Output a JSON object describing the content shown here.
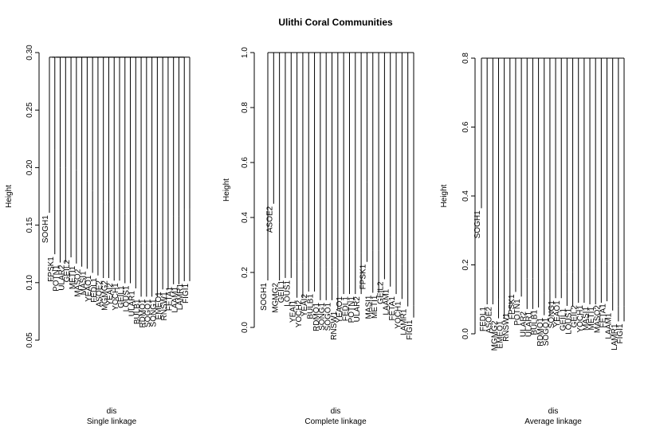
{
  "title": "Ulithi Coral Communities",
  "chart_data": [
    {
      "type": "dendrogram",
      "ylabel": "Height",
      "xlabel": "dis",
      "subtitle": "Single linkage",
      "ylim": [
        0.05,
        0.3
      ],
      "yticks": [
        "0.05",
        "0.10",
        "0.15",
        "0.20",
        "0.25",
        "0.30"
      ],
      "root_height": 0.296,
      "leaves": [
        {
          "label": "SOGH1",
          "height": 0.296
        },
        {
          "label": "FPSK1",
          "height": 0.216
        },
        {
          "label": "POTN1",
          "height": 0.2
        },
        {
          "label": "ULAR2",
          "height": 0.2
        },
        {
          "label": "GEIL2",
          "height": 0.21
        },
        {
          "label": "METI1",
          "height": 0.198
        },
        {
          "label": "MASO2",
          "height": 0.192
        },
        {
          "label": "MASI1",
          "height": 0.188
        },
        {
          "label": "YEAO1",
          "height": 0.18
        },
        {
          "label": "FEDL1",
          "height": 0.175
        },
        {
          "label": "ASOE2",
          "height": 0.17
        },
        {
          "label": "MGMG2",
          "height": 0.17
        },
        {
          "label": "YEAI2",
          "height": 0.165
        },
        {
          "label": "YOCH1",
          "height": 0.165
        },
        {
          "label": "GEIL1",
          "height": 0.16
        },
        {
          "label": "LOUS1",
          "height": 0.16
        },
        {
          "label": "ULAR1",
          "height": 0.15
        },
        {
          "label": "BULB1",
          "height": 0.134
        },
        {
          "label": "RDMO1",
          "height": 0.134
        },
        {
          "label": "SOGO1",
          "height": 0.134
        },
        {
          "label": "SONG1",
          "height": 0.134
        },
        {
          "label": "EMEO1",
          "height": 0.148
        },
        {
          "label": "RNSW1",
          "height": 0.148
        },
        {
          "label": "FETA1",
          "height": 0.158
        },
        {
          "label": "LAAM1",
          "height": 0.158
        },
        {
          "label": "LAMR1",
          "height": 0.164
        },
        {
          "label": "FIGI1",
          "height": 0.164
        }
      ]
    },
    {
      "type": "dendrogram",
      "ylabel": "Height",
      "xlabel": "dis",
      "subtitle": "Complete linkage",
      "ylim": [
        0.0,
        1.0
      ],
      "yticks": [
        "0.0",
        "0.2",
        "0.4",
        "0.6",
        "0.8",
        "1.0"
      ],
      "root_height": 1.0,
      "leaves": [
        {
          "label": "SOGH1",
          "height": 0.38
        },
        {
          "label": "ASOE2",
          "height": 1.0
        },
        {
          "label": "MGMG2",
          "height": 0.38
        },
        {
          "label": "GEIL1",
          "height": 0.4
        },
        {
          "label": "LOUS1",
          "height": 0.4
        },
        {
          "label": "YEAI1",
          "height": 0.24
        },
        {
          "label": "YOCH2",
          "height": 0.24
        },
        {
          "label": "YEAI2",
          "height": 0.29
        },
        {
          "label": "BULB1",
          "height": 0.29
        },
        {
          "label": "RDMO1",
          "height": 0.22
        },
        {
          "label": "SONG1",
          "height": 0.22
        },
        {
          "label": "SOGO1",
          "height": 0.22
        },
        {
          "label": "RNSW1",
          "height": 0.15
        },
        {
          "label": "YEAO1",
          "height": 0.27
        },
        {
          "label": "FEDL1",
          "height": 0.27
        },
        {
          "label": "POTN1",
          "height": 0.27
        },
        {
          "label": "ULAR2",
          "height": 0.27
        },
        {
          "label": "FPSK1",
          "height": 0.53
        },
        {
          "label": "MASI1",
          "height": 0.28
        },
        {
          "label": "METI1",
          "height": 0.28
        },
        {
          "label": "GEIL2",
          "height": 0.39
        },
        {
          "label": "LAAM1",
          "height": 0.33
        },
        {
          "label": "FETA1",
          "height": 0.27
        },
        {
          "label": "YOCH1",
          "height": 0.23
        },
        {
          "label": "LAMR1",
          "height": 0.17
        },
        {
          "label": "FIGI1",
          "height": 0.08
        }
      ]
    },
    {
      "type": "dendrogram",
      "ylabel": "Height",
      "xlabel": "dis",
      "subtitle": "Average linkage",
      "ylim": [
        0.0,
        0.8
      ],
      "yticks": [
        "0.0",
        "0.2",
        "0.4",
        "0.6",
        "0.8"
      ],
      "root_height": 0.81,
      "leaves": [
        {
          "label": "SOGH1",
          "height": 0.81
        },
        {
          "label": "FEDL1",
          "height": 0.19
        },
        {
          "label": "ASOE2",
          "height": 0.19
        },
        {
          "label": "MGMG2",
          "height": 0.1
        },
        {
          "label": "EMEO1",
          "height": 0.1
        },
        {
          "label": "RNSW1",
          "height": 0.15
        },
        {
          "label": "FPSK1",
          "height": 0.27
        },
        {
          "label": "POTN1",
          "height": 0.24
        },
        {
          "label": "ULAR2",
          "height": 0.16
        },
        {
          "label": "ULAR1",
          "height": 0.16
        },
        {
          "label": "BULB1",
          "height": 0.17
        },
        {
          "label": "RDMO1",
          "height": 0.12
        },
        {
          "label": "SOGO1",
          "height": 0.12
        },
        {
          "label": "SONG1",
          "height": 0.23
        },
        {
          "label": "YEAO1",
          "height": 0.23
        },
        {
          "label": "GEIL1",
          "height": 0.18
        },
        {
          "label": "LOUS1",
          "height": 0.18
        },
        {
          "label": "GEIL2",
          "height": 0.2
        },
        {
          "label": "YOCH1",
          "height": 0.2
        },
        {
          "label": "MASI1",
          "height": 0.19
        },
        {
          "label": "METI1",
          "height": 0.19
        },
        {
          "label": "MASO2",
          "height": 0.2
        },
        {
          "label": "FETA1",
          "height": 0.21
        },
        {
          "label": "LAAM1",
          "height": 0.15
        },
        {
          "label": "LAMR1",
          "height": 0.08
        },
        {
          "label": "FIGI1",
          "height": 0.08
        }
      ]
    }
  ]
}
